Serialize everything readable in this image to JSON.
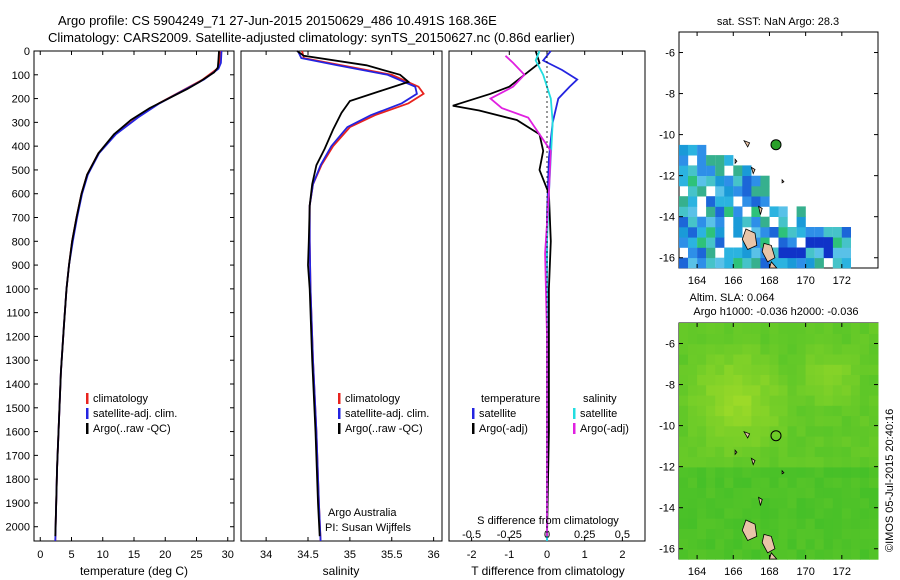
{
  "header": {
    "line1": "Argo profile: CS 5904249_71 27-Jun-2015 20150629_486 10.491S 168.36E",
    "line2": "Climatology: CARS2009. Satellite-adjusted climatology: synTS_20150627.nc (0.86d earlier)"
  },
  "colors": {
    "climatology": "#e8231e",
    "satellite": "#2424e0",
    "argo": "#000000",
    "salinity_satellite": "#22dde0",
    "salinity_argo": "#e020e0"
  },
  "chart_data": [
    {
      "type": "line",
      "id": "temperature",
      "xlabel": "temperature (deg C)",
      "xlim": [
        -1,
        31
      ],
      "xticks": [
        0,
        5,
        10,
        15,
        20,
        25,
        30
      ],
      "ylim": [
        2060,
        0
      ],
      "yticks": [
        0,
        100,
        200,
        300,
        400,
        500,
        600,
        700,
        800,
        900,
        1000,
        1100,
        1200,
        1300,
        1400,
        1500,
        1600,
        1700,
        1800,
        1900,
        2000
      ],
      "legend": [
        "climatology",
        "satellite-adj. clim.",
        "Argo(..raw -QC)"
      ],
      "series": [
        {
          "name": "climatology",
          "color": "#e8231e",
          "points": [
            [
              28.8,
              0
            ],
            [
              28.7,
              50
            ],
            [
              28.3,
              75
            ],
            [
              26,
              120
            ],
            [
              22.5,
              170
            ],
            [
              19,
              220
            ],
            [
              15.5,
              280
            ],
            [
              12,
              350
            ],
            [
              9.3,
              430
            ],
            [
              7.5,
              520
            ],
            [
              6.6,
              600
            ],
            [
              5.8,
              700
            ],
            [
              5.1,
              800
            ],
            [
              4.6,
              900
            ],
            [
              4.2,
              1000
            ],
            [
              3.8,
              1150
            ],
            [
              3.3,
              1350
            ],
            [
              3.0,
              1550
            ],
            [
              2.7,
              1750
            ],
            [
              2.5,
              1950
            ],
            [
              2.4,
              2060
            ]
          ]
        },
        {
          "name": "satellite-adj. clim.",
          "color": "#2424e0",
          "points": [
            [
              29.0,
              0
            ],
            [
              28.9,
              50
            ],
            [
              28.5,
              75
            ],
            [
              26.2,
              120
            ],
            [
              22.6,
              170
            ],
            [
              19.1,
              220
            ],
            [
              15.6,
              280
            ],
            [
              12.1,
              350
            ],
            [
              9.4,
              430
            ],
            [
              7.6,
              520
            ],
            [
              6.7,
              600
            ],
            [
              5.9,
              700
            ],
            [
              5.2,
              800
            ],
            [
              4.6,
              900
            ],
            [
              4.2,
              1000
            ],
            [
              3.8,
              1150
            ],
            [
              3.3,
              1350
            ],
            [
              3.0,
              1550
            ],
            [
              2.7,
              1750
            ],
            [
              2.5,
              1950
            ],
            [
              2.4,
              2060
            ]
          ]
        },
        {
          "name": "Argo(..raw -QC)",
          "color": "#000000",
          "points": [
            [
              28.6,
              0
            ],
            [
              28.5,
              40
            ],
            [
              28.4,
              70
            ],
            [
              27.8,
              90
            ],
            [
              25.5,
              130
            ],
            [
              23.5,
              160
            ],
            [
              20.5,
              200
            ],
            [
              17.5,
              240
            ],
            [
              14.5,
              290
            ],
            [
              11.8,
              350
            ],
            [
              9.3,
              430
            ],
            [
              7.5,
              520
            ],
            [
              6.6,
              600
            ],
            [
              5.8,
              700
            ],
            [
              5.1,
              800
            ],
            [
              4.6,
              900
            ],
            [
              4.2,
              1000
            ],
            [
              3.8,
              1150
            ],
            [
              3.3,
              1350
            ],
            [
              3.0,
              1550
            ],
            [
              2.7,
              1750
            ],
            [
              2.5,
              1950
            ],
            [
              2.4,
              2040
            ]
          ]
        }
      ]
    },
    {
      "type": "line",
      "id": "salinity",
      "xlabel": "salinity",
      "xlim": [
        33.7,
        36.1
      ],
      "xticks": [
        34,
        34.5,
        35,
        35.5,
        36
      ],
      "ylim": [
        2060,
        0
      ],
      "legend": [
        "climatology",
        "satellite-adj. clim.",
        "Argo(..raw -QC)"
      ],
      "series": [
        {
          "name": "climatology",
          "color": "#e8231e",
          "points": [
            [
              34.43,
              0
            ],
            [
              34.45,
              30
            ],
            [
              34.9,
              60
            ],
            [
              35.5,
              100
            ],
            [
              35.82,
              150
            ],
            [
              35.88,
              180
            ],
            [
              35.7,
              220
            ],
            [
              35.3,
              270
            ],
            [
              35.0,
              320
            ],
            [
              34.8,
              400
            ],
            [
              34.66,
              480
            ],
            [
              34.56,
              560
            ],
            [
              34.52,
              650
            ],
            [
              34.52,
              800
            ],
            [
              34.53,
              1000
            ],
            [
              34.56,
              1300
            ],
            [
              34.6,
              1600
            ],
            [
              34.63,
              1900
            ],
            [
              34.65,
              2060
            ]
          ]
        },
        {
          "name": "satellite-adj. clim.",
          "color": "#2424e0",
          "points": [
            [
              34.38,
              0
            ],
            [
              34.42,
              30
            ],
            [
              34.85,
              60
            ],
            [
              35.45,
              100
            ],
            [
              35.78,
              150
            ],
            [
              35.8,
              180
            ],
            [
              35.62,
              220
            ],
            [
              35.25,
              270
            ],
            [
              34.97,
              320
            ],
            [
              34.78,
              400
            ],
            [
              34.65,
              480
            ],
            [
              34.56,
              560
            ],
            [
              34.52,
              650
            ],
            [
              34.52,
              800
            ],
            [
              34.53,
              1000
            ],
            [
              34.56,
              1300
            ],
            [
              34.6,
              1600
            ],
            [
              34.63,
              1900
            ],
            [
              34.65,
              2060
            ]
          ]
        },
        {
          "name": "Argo(..raw -QC)",
          "color": "#000000",
          "points": [
            [
              34.37,
              0
            ],
            [
              34.45,
              20
            ],
            [
              35.2,
              60
            ],
            [
              35.6,
              100
            ],
            [
              35.7,
              130
            ],
            [
              35.35,
              170
            ],
            [
              35.0,
              210
            ],
            [
              34.9,
              260
            ],
            [
              34.8,
              330
            ],
            [
              34.7,
              410
            ],
            [
              34.6,
              480
            ],
            [
              34.55,
              560
            ],
            [
              34.52,
              650
            ],
            [
              34.51,
              800
            ],
            [
              34.5,
              900
            ],
            [
              34.52,
              1000
            ],
            [
              34.55,
              1300
            ],
            [
              34.59,
              1600
            ],
            [
              34.62,
              1900
            ],
            [
              34.64,
              2040
            ]
          ]
        }
      ],
      "credit": [
        "Argo Australia",
        "PI: Susan Wijffels"
      ]
    },
    {
      "type": "line",
      "id": "difference",
      "xlabel_top": "S difference from climatology",
      "xlabel_bottom": "T difference from climatology",
      "xlim": [
        -2.6,
        2.6
      ],
      "xticks_T": [
        -2,
        -1,
        0,
        1,
        2
      ],
      "xticks_S_labels": [
        "-0.5",
        "-0.25",
        "0",
        "0.25",
        "0.5"
      ],
      "xticks_S_positions": [
        -2,
        -1,
        0,
        1,
        2
      ],
      "ylim": [
        2060,
        0
      ],
      "legend": {
        "temperature_title": "temperature",
        "temperature": [
          "satellite",
          "Argo(-adj)"
        ],
        "salinity_title": "salinity",
        "salinity": [
          "satellite",
          "Argo(-adj)"
        ]
      },
      "series": [
        {
          "name": "T satellite",
          "color": "#2424e0",
          "points": [
            [
              0.1,
              0
            ],
            [
              -0.1,
              40
            ],
            [
              0.4,
              80
            ],
            [
              0.8,
              120
            ],
            [
              0.6,
              150
            ],
            [
              0.3,
              200
            ],
            [
              0.15,
              300
            ],
            [
              0.05,
              450
            ],
            [
              0,
              700
            ],
            [
              0,
              1000
            ],
            [
              0,
              1500
            ],
            [
              0,
              2060
            ]
          ]
        },
        {
          "name": "T Argo(-adj)",
          "color": "#000000",
          "points": [
            [
              -0.3,
              0
            ],
            [
              -0.2,
              50
            ],
            [
              -0.6,
              100
            ],
            [
              -1.0,
              150
            ],
            [
              -1.5,
              180
            ],
            [
              -2.5,
              230
            ],
            [
              -1.8,
              250
            ],
            [
              -0.8,
              290
            ],
            [
              -0.2,
              350
            ],
            [
              -0.1,
              420
            ],
            [
              -0.2,
              500
            ],
            [
              0.05,
              600
            ],
            [
              0.1,
              800
            ],
            [
              0.05,
              1000
            ],
            [
              0.05,
              1300
            ],
            [
              0.05,
              1600
            ],
            [
              0.0,
              2040
            ]
          ]
        },
        {
          "name": "S satellite",
          "color": "#22dde0",
          "points": [
            [
              -0.2,
              0
            ],
            [
              -0.3,
              40
            ],
            [
              -0.1,
              100
            ],
            [
              0.1,
              200
            ],
            [
              0.15,
              300
            ],
            [
              0.1,
              450
            ],
            [
              0.05,
              600
            ],
            [
              0.0,
              800
            ],
            [
              0.0,
              1200
            ],
            [
              0.0,
              2060
            ]
          ]
        },
        {
          "name": "S Argo(-adj)",
          "color": "#e020e0",
          "points": [
            [
              -1.1,
              20
            ],
            [
              -0.9,
              50
            ],
            [
              -0.6,
              100
            ],
            [
              -0.9,
              150
            ],
            [
              -1.5,
              200
            ],
            [
              -1.2,
              240
            ],
            [
              -0.5,
              280
            ],
            [
              -0.2,
              350
            ],
            [
              0.1,
              420
            ],
            [
              0.05,
              600
            ],
            [
              -0.05,
              850
            ],
            [
              0.0,
              1200
            ],
            [
              0.0,
              2040
            ]
          ]
        }
      ]
    },
    {
      "type": "heatmap",
      "id": "sst-map",
      "title": "sat. SST: NaN Argo: 28.3",
      "xlim": [
        163,
        174
      ],
      "ylim": [
        -16.5,
        -5
      ],
      "xticks": [
        164,
        166,
        168,
        170,
        172
      ],
      "yticks": [
        -6,
        -8,
        -10,
        -12,
        -14,
        -16
      ],
      "argo_position": [
        168.36,
        -10.49
      ]
    },
    {
      "type": "heatmap",
      "id": "sla-map",
      "title": "Altim. SLA: 0.064",
      "subtitle": "Argo h1000: -0.036 h2000: -0.036",
      "xlim": [
        163,
        174
      ],
      "ylim": [
        -16.5,
        -5
      ],
      "xticks": [
        164,
        166,
        168,
        170,
        172
      ],
      "yticks": [
        -6,
        -8,
        -10,
        -12,
        -14,
        -16
      ],
      "argo_position": [
        168.36,
        -10.49
      ]
    }
  ],
  "footer": {
    "stamp": "©IMOS 05-Jul-2015 20:40:16"
  }
}
